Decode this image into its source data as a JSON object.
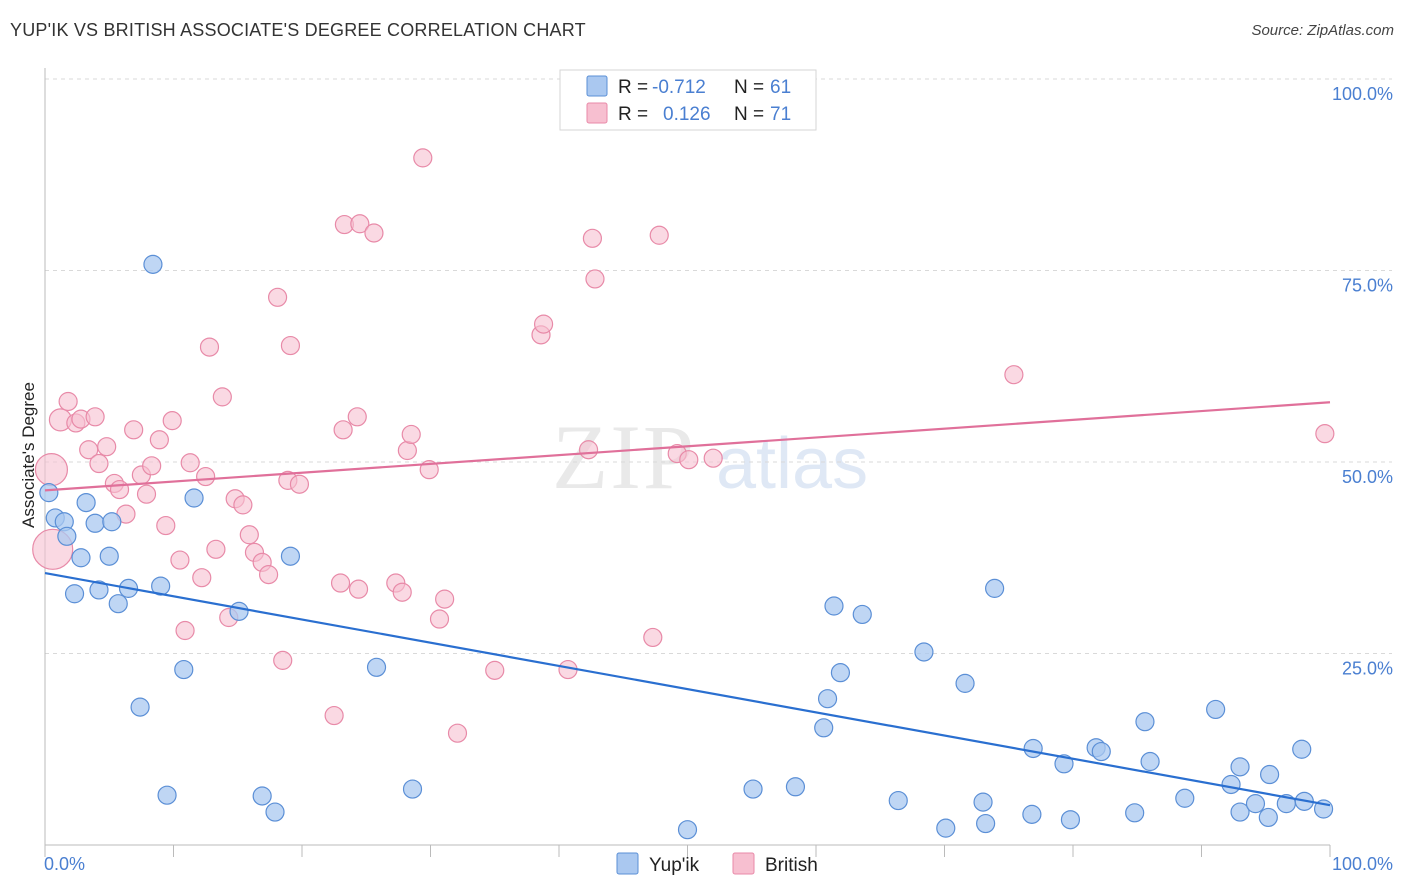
{
  "header": {
    "title": "YUP'IK VS BRITISH ASSOCIATE'S DEGREE CORRELATION CHART",
    "source": "Source: ZipAtlas.com"
  },
  "watermark": {
    "zip": "ZIP",
    "atlas": "atlas"
  },
  "legend": {
    "rows": [
      {
        "r_label": "R =",
        "r_value": "-0.712",
        "n_label": "N =",
        "n_value": "61"
      },
      {
        "r_label": "R =",
        "r_value": "0.126",
        "n_label": "N =",
        "n_value": "71"
      }
    ]
  },
  "colors": {
    "yupik_fill": "#aac8f0",
    "yupik_stroke": "#5b8fd6",
    "yupik_line": "#2a6fd0",
    "british_fill": "#f7bfd0",
    "british_stroke": "#e88aa8",
    "british_line": "#e0709a",
    "tick_text": "#4a7fd1",
    "grid": "#d9d9d9"
  },
  "chart_data": {
    "type": "scatter",
    "ylabel": "Associate's Degree",
    "xlim": [
      0,
      100
    ],
    "ylim": [
      0,
      100
    ],
    "x_tick_labels": [
      "0.0%",
      "100.0%"
    ],
    "y_ticks": [
      {
        "value": 25,
        "label": "25.0%"
      },
      {
        "value": 50,
        "label": "50.0%"
      },
      {
        "value": 75,
        "label": "75.0%"
      },
      {
        "value": 100,
        "label": "100.0%"
      }
    ],
    "series": [
      {
        "name": "Yup'ik",
        "trend": [
          [
            0,
            35.5
          ],
          [
            100,
            5.2
          ]
        ],
        "points": [
          [
            0.3,
            46,
            9
          ],
          [
            0.8,
            42.7,
            9
          ],
          [
            1.5,
            42.2,
            9
          ],
          [
            1.7,
            40.3,
            9
          ],
          [
            2.3,
            32.8,
            9
          ],
          [
            2.8,
            37.5,
            9
          ],
          [
            3.2,
            44.7,
            9
          ],
          [
            3.9,
            42,
            9
          ],
          [
            4.2,
            33.3,
            9
          ],
          [
            5.0,
            37.7,
            9
          ],
          [
            5.2,
            42.2,
            9
          ],
          [
            5.7,
            31.5,
            9
          ],
          [
            6.5,
            33.5,
            9
          ],
          [
            7.4,
            18,
            9
          ],
          [
            8.4,
            75.8,
            9
          ],
          [
            9.0,
            33.8,
            9
          ],
          [
            9.5,
            6.5,
            9
          ],
          [
            10.8,
            22.9,
            9
          ],
          [
            11.6,
            45.3,
            9
          ],
          [
            15.1,
            30.5,
            9
          ],
          [
            16.9,
            6.4,
            9
          ],
          [
            17.9,
            4.3,
            9
          ],
          [
            19.1,
            37.7,
            9
          ],
          [
            25.8,
            23.2,
            9
          ],
          [
            28.6,
            7.3,
            9
          ],
          [
            50.0,
            2.0,
            9
          ],
          [
            55.1,
            7.3,
            9
          ],
          [
            58.4,
            7.6,
            9
          ],
          [
            60.6,
            15.3,
            9
          ],
          [
            60.9,
            19.1,
            9
          ],
          [
            61.4,
            31.2,
            9
          ],
          [
            61.9,
            22.5,
            9
          ],
          [
            63.6,
            30.1,
            9
          ],
          [
            66.4,
            5.8,
            9
          ],
          [
            68.4,
            25.2,
            9
          ],
          [
            70.1,
            2.2,
            9
          ],
          [
            71.6,
            21.1,
            9
          ],
          [
            73.0,
            5.6,
            9
          ],
          [
            73.2,
            2.8,
            9
          ],
          [
            73.9,
            33.5,
            9
          ],
          [
            76.8,
            4.0,
            9
          ],
          [
            76.9,
            12.6,
            9
          ],
          [
            79.3,
            10.6,
            9
          ],
          [
            79.8,
            3.3,
            9
          ],
          [
            81.8,
            12.7,
            9
          ],
          [
            82.2,
            12.2,
            9
          ],
          [
            84.8,
            4.2,
            9
          ],
          [
            85.6,
            16.1,
            9
          ],
          [
            86.0,
            10.9,
            9
          ],
          [
            88.7,
            6.1,
            9
          ],
          [
            91.1,
            17.7,
            9
          ],
          [
            92.3,
            7.9,
            9
          ],
          [
            93.0,
            4.3,
            9
          ],
          [
            93.0,
            10.2,
            9
          ],
          [
            94.2,
            5.4,
            9
          ],
          [
            95.2,
            3.6,
            9
          ],
          [
            95.3,
            9.2,
            9
          ],
          [
            96.6,
            5.4,
            9
          ],
          [
            97.8,
            12.5,
            9
          ],
          [
            98.0,
            5.7,
            9
          ],
          [
            99.5,
            4.7,
            9
          ]
        ]
      },
      {
        "name": "British",
        "trend": [
          [
            0,
            46.3
          ],
          [
            100,
            57.8
          ]
        ],
        "points": [
          [
            0.5,
            49,
            16
          ],
          [
            0.6,
            38.6,
            20
          ],
          [
            1.2,
            55.5,
            11
          ],
          [
            1.8,
            57.9,
            9
          ],
          [
            2.4,
            55.1,
            9
          ],
          [
            2.8,
            55.6,
            9
          ],
          [
            3.4,
            51.6,
            9
          ],
          [
            3.9,
            55.9,
            9
          ],
          [
            4.2,
            49.8,
            9
          ],
          [
            4.8,
            52.0,
            9
          ],
          [
            5.4,
            47.2,
            9
          ],
          [
            5.8,
            46.4,
            9
          ],
          [
            6.3,
            43.2,
            9
          ],
          [
            6.9,
            54.2,
            9
          ],
          [
            7.5,
            48.3,
            9
          ],
          [
            7.9,
            45.8,
            9
          ],
          [
            8.3,
            49.5,
            9
          ],
          [
            8.9,
            52.9,
            9
          ],
          [
            9.4,
            41.7,
            9
          ],
          [
            9.9,
            55.4,
            9
          ],
          [
            10.5,
            37.2,
            9
          ],
          [
            10.9,
            28.0,
            9
          ],
          [
            11.3,
            49.9,
            9
          ],
          [
            12.2,
            34.9,
            9
          ],
          [
            12.5,
            48.1,
            9
          ],
          [
            12.8,
            65.0,
            9
          ],
          [
            13.3,
            38.6,
            9
          ],
          [
            13.8,
            58.5,
            9
          ],
          [
            14.3,
            29.7,
            9
          ],
          [
            14.8,
            45.2,
            9
          ],
          [
            15.4,
            44.4,
            9
          ],
          [
            15.9,
            40.5,
            9
          ],
          [
            16.3,
            38.2,
            9
          ],
          [
            16.9,
            36.9,
            9
          ],
          [
            17.4,
            35.3,
            9
          ],
          [
            18.1,
            71.5,
            9
          ],
          [
            18.5,
            24.1,
            9
          ],
          [
            18.9,
            47.6,
            9
          ],
          [
            19.1,
            65.2,
            9
          ],
          [
            19.8,
            47.1,
            9
          ],
          [
            22.5,
            16.9,
            9
          ],
          [
            23.0,
            34.2,
            9
          ],
          [
            23.2,
            54.2,
            9
          ],
          [
            23.3,
            81.0,
            9
          ],
          [
            24.3,
            55.9,
            9
          ],
          [
            24.4,
            33.4,
            9
          ],
          [
            24.5,
            81.1,
            9
          ],
          [
            25.6,
            79.9,
            9
          ],
          [
            27.3,
            34.2,
            9
          ],
          [
            27.8,
            33.0,
            9
          ],
          [
            28.2,
            51.5,
            9
          ],
          [
            28.5,
            53.6,
            9
          ],
          [
            29.4,
            89.7,
            9
          ],
          [
            29.9,
            49.0,
            9
          ],
          [
            30.7,
            29.5,
            9
          ],
          [
            31.1,
            32.1,
            9
          ],
          [
            32.1,
            14.6,
            9
          ],
          [
            35.0,
            22.8,
            9
          ],
          [
            42.3,
            51.6,
            9
          ],
          [
            38.6,
            66.6,
            9
          ],
          [
            38.8,
            68.0,
            9
          ],
          [
            40.7,
            22.9,
            9
          ],
          [
            42.6,
            79.2,
            9
          ],
          [
            42.8,
            73.9,
            9
          ],
          [
            47.3,
            27.1,
            9
          ],
          [
            47.8,
            79.6,
            9
          ],
          [
            49.2,
            51.1,
            9
          ],
          [
            50.1,
            50.3,
            9
          ],
          [
            52.0,
            50.5,
            9
          ],
          [
            75.4,
            61.4,
            9
          ],
          [
            99.6,
            53.7,
            9
          ]
        ]
      }
    ]
  },
  "bottom_legend": {
    "items": [
      {
        "label": "Yup'ik"
      },
      {
        "label": "British"
      }
    ]
  }
}
